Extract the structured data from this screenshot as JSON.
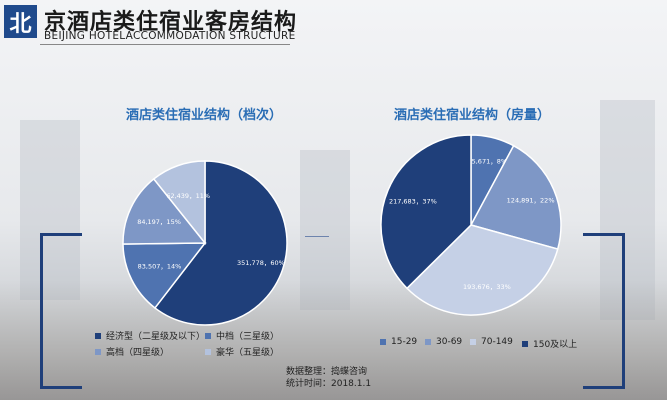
{
  "header": {
    "logo_char": "北",
    "title": "京酒店类住宿业客房结构",
    "subtitle": "BEIJING HOTELACCOMMODATION STRUCTURE"
  },
  "footer": {
    "line1": "数据整理：捣蝶咨询",
    "line2": "统计时间：2018.1.1"
  },
  "chart_data": [
    {
      "type": "pie",
      "title": "酒店类住宿业结构（档次）",
      "categories": [
        "经济型（二星级及以下）",
        "中档（三星级）",
        "高档（四星级）",
        "豪华（五星级）"
      ],
      "values": [
        351778,
        83507,
        84197,
        62439
      ],
      "percents": [
        60,
        14,
        15,
        11
      ],
      "data_labels": [
        "351,778，60%",
        "83,507，14%",
        "84,197，15%",
        "62,439，11%"
      ],
      "colors": [
        "#1f3f7a",
        "#4f73b0",
        "#7e97c6",
        "#b3c2de"
      ],
      "legend_position": "bottom"
    },
    {
      "type": "pie",
      "title": "酒店类住宿业结构（房量）",
      "categories": [
        "15-29",
        "30-69",
        "70-149",
        "150及以上"
      ],
      "values": [
        45671,
        124891,
        193676,
        217683
      ],
      "percents": [
        8,
        22,
        33,
        37
      ],
      "data_labels": [
        "45,671，8%",
        "124,891，22%",
        "193,676，33%",
        "217,683，37%"
      ],
      "colors": [
        "#4f73b0",
        "#7e97c6",
        "#c5d0e6",
        "#1f3f7a"
      ],
      "legend_position": "bottom"
    }
  ]
}
